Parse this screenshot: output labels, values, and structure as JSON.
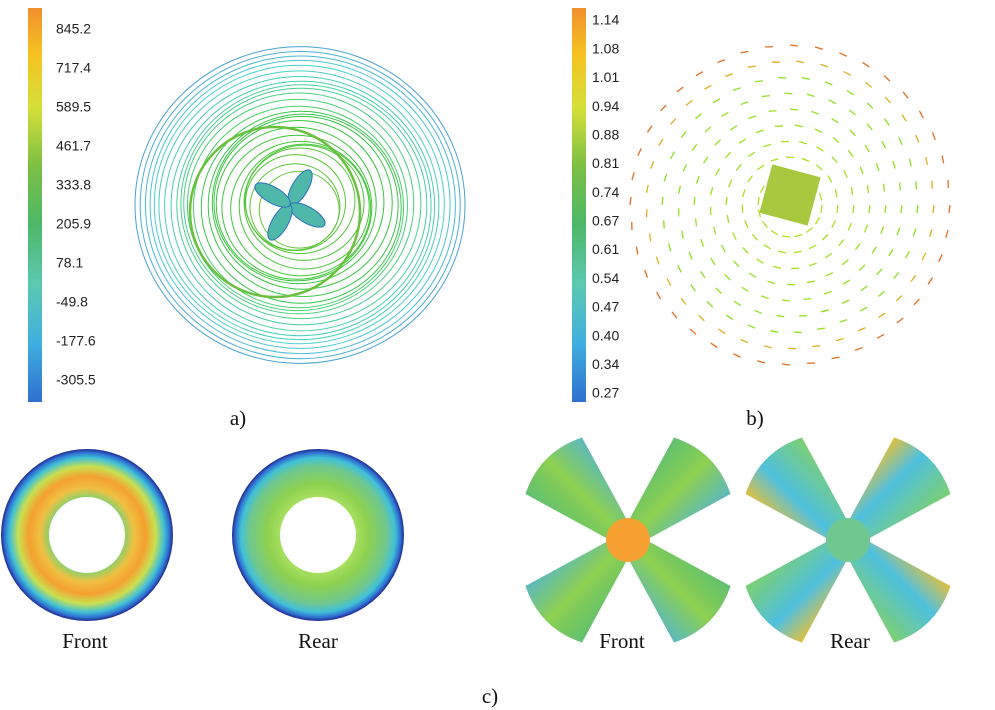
{
  "panel_a": {
    "colorbar_labels": [
      "845.2",
      "717.4",
      "589.5",
      "461.7",
      "333.8",
      "205.9",
      "78.1",
      "-49.8",
      "-177.6",
      "-305.5"
    ],
    "label": "a)"
  },
  "panel_b": {
    "colorbar_labels": [
      "1.14",
      "1.08",
      "1.01",
      "0.94",
      "0.88",
      "0.81",
      "0.74",
      "0.67",
      "0.61",
      "0.54",
      "0.47",
      "0.40",
      "0.34",
      "0.27"
    ],
    "label": "b)"
  },
  "panel_c": {
    "label": "c)",
    "captions": [
      "Front",
      "Rear",
      "Front",
      "Rear"
    ]
  }
}
